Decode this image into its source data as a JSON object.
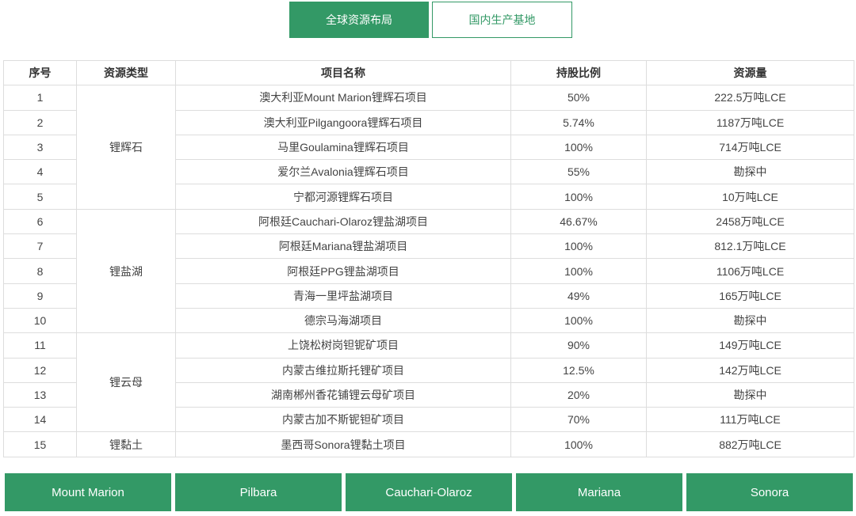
{
  "tabs": [
    {
      "label": "全球资源布局",
      "active": true
    },
    {
      "label": "国内生产基地",
      "active": false
    }
  ],
  "colors": {
    "accent": "#339966",
    "border": "#dddddd"
  },
  "table": {
    "headers": [
      "序号",
      "资源类型",
      "项目名称",
      "持股比例",
      "资源量"
    ],
    "groups": [
      {
        "type": "锂辉石",
        "rows": [
          [
            "1",
            "澳大利亚Mount Marion锂辉石项目",
            "50%",
            "222.5万吨LCE"
          ],
          [
            "2",
            "澳大利亚Pilgangoora锂辉石项目",
            "5.74%",
            "1187万吨LCE"
          ],
          [
            "3",
            "马里Goulamina锂辉石项目",
            "100%",
            "714万吨LCE"
          ],
          [
            "4",
            "爱尔兰Avalonia锂辉石项目",
            "55%",
            "勘探中"
          ],
          [
            "5",
            "宁都河源锂辉石项目",
            "100%",
            "10万吨LCE"
          ]
        ]
      },
      {
        "type": "锂盐湖",
        "rows": [
          [
            "6",
            "阿根廷Cauchari-Olaroz锂盐湖项目",
            "46.67%",
            "2458万吨LCE"
          ],
          [
            "7",
            "阿根廷Mariana锂盐湖项目",
            "100%",
            "812.1万吨LCE"
          ],
          [
            "8",
            "阿根廷PPG锂盐湖项目",
            "100%",
            "1106万吨LCE"
          ],
          [
            "9",
            "青海一里坪盐湖项目",
            "49%",
            "165万吨LCE"
          ],
          [
            "10",
            "德宗马海湖项目",
            "100%",
            "勘探中"
          ]
        ]
      },
      {
        "type": "锂云母",
        "rows": [
          [
            "11",
            "上饶松树岗钽铌矿项目",
            "90%",
            "149万吨LCE"
          ],
          [
            "12",
            "内蒙古维拉斯托锂矿项目",
            "12.5%",
            "142万吨LCE"
          ],
          [
            "13",
            "湖南郴州香花铺锂云母矿项目",
            "20%",
            "勘探中"
          ],
          [
            "14",
            "内蒙古加不斯铌钽矿项目",
            "70%",
            "111万吨LCE"
          ]
        ]
      },
      {
        "type": "锂黏土",
        "rows": [
          [
            "15",
            "墨西哥Sonora锂黏土项目",
            "100%",
            "882万吨LCE"
          ]
        ]
      }
    ]
  },
  "buttons": [
    "Mount Marion",
    "Pilbara",
    "Cauchari-Olaroz",
    "Mariana",
    "Sonora"
  ]
}
